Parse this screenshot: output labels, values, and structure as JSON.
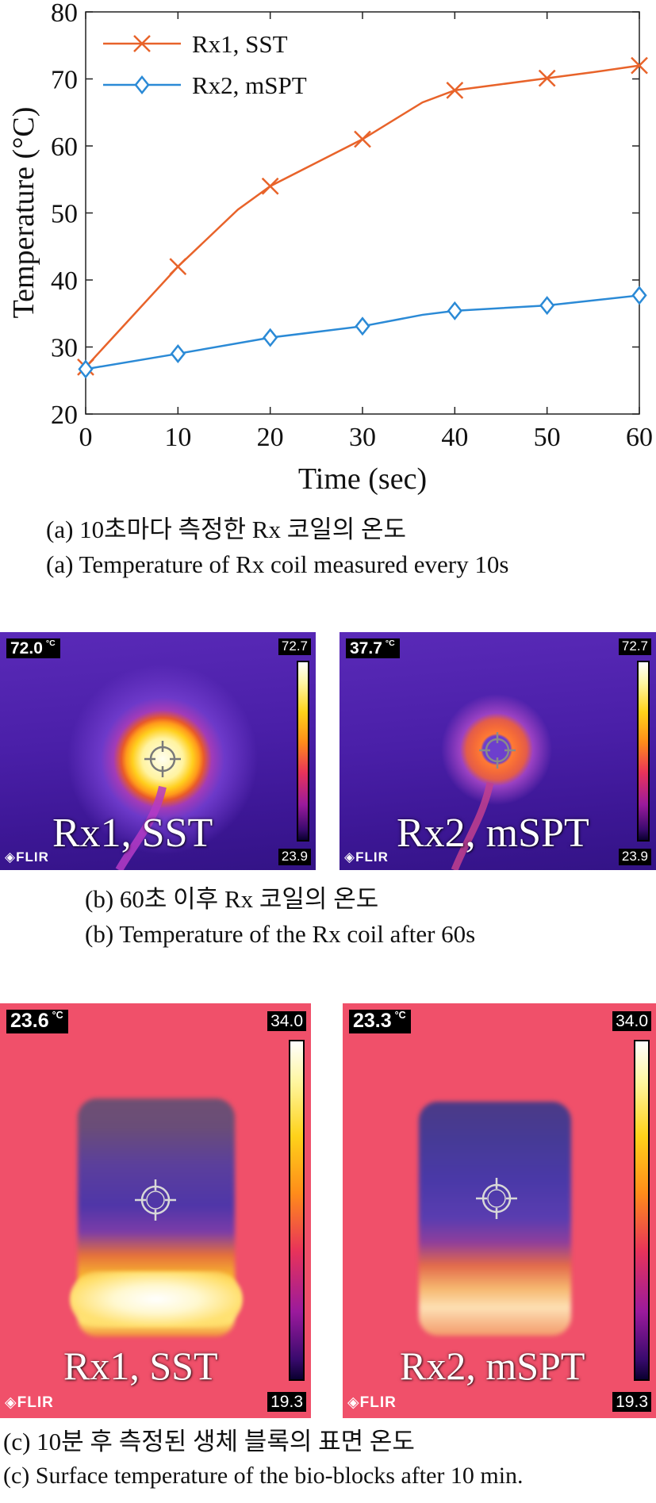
{
  "chart_data": {
    "type": "line",
    "x": [
      0,
      10,
      20,
      30,
      40,
      50,
      60
    ],
    "xlabel": "Time (sec)",
    "ylabel": "Temperature (°C)",
    "xlim": [
      0,
      60
    ],
    "ylim": [
      20,
      80
    ],
    "xticks": [
      "0",
      "10",
      "20",
      "30",
      "40",
      "50",
      "60"
    ],
    "yticks": [
      "20",
      "30",
      "40",
      "50",
      "60",
      "70",
      "80"
    ],
    "grid": false,
    "legend_position": "top-left",
    "series": [
      {
        "name": "Rx1, SST",
        "color": "#e8632a",
        "marker": "x",
        "values": [
          27.0,
          42.0,
          54.0,
          61.0,
          68.3,
          70.1,
          72.0
        ],
        "curve": [
          [
            0,
            27.0
          ],
          [
            5,
            34.5
          ],
          [
            10,
            42.0
          ],
          [
            16.5,
            50.5
          ],
          [
            20,
            54.0
          ],
          [
            25,
            57.5
          ],
          [
            30,
            61.0
          ],
          [
            36.5,
            66.5
          ],
          [
            40,
            68.3
          ],
          [
            45,
            69.2
          ],
          [
            50,
            70.1
          ],
          [
            55,
            71.0
          ],
          [
            60,
            72.0
          ]
        ]
      },
      {
        "name": "Rx2, mSPT",
        "color": "#2b8ad6",
        "marker": "diamond",
        "values": [
          26.7,
          29.0,
          31.4,
          33.1,
          35.4,
          36.2,
          37.7
        ],
        "curve": [
          [
            0,
            26.7
          ],
          [
            10,
            29.0
          ],
          [
            20,
            31.4
          ],
          [
            30,
            33.1
          ],
          [
            36.5,
            34.8
          ],
          [
            40,
            35.4
          ],
          [
            50,
            36.2
          ],
          [
            60,
            37.7
          ]
        ]
      }
    ]
  },
  "captions": {
    "a_ko": "(a) 10초마다 측정한 Rx 코일의 온도",
    "a_en": "(a) Temperature of Rx coil measured every 10s",
    "b_ko": "(b) 60초 이후 Rx 코일의 온도",
    "b_en": "(b) Temperature of the Rx coil after 60s",
    "c_ko": "(c) 10분 후 측정된 생체 블록의 표면 온도",
    "c_en": "(c) Surface temperature of the bio-blocks after 10 min."
  },
  "thermal_b": [
    {
      "readout": "72.0",
      "unit": "°C",
      "scale_max": "72.7",
      "scale_min": "23.9",
      "label": "Rx1, SST",
      "brand": "FLIR"
    },
    {
      "readout": "37.7",
      "unit": "°C",
      "scale_max": "72.7",
      "scale_min": "23.9",
      "label": "Rx2, mSPT",
      "brand": "FLIR"
    }
  ],
  "thermal_c": [
    {
      "readout": "23.6",
      "unit": "°C",
      "scale_max": "34.0",
      "scale_min": "19.3",
      "label": "Rx1, SST",
      "brand": "FLIR"
    },
    {
      "readout": "23.3",
      "unit": "°C",
      "scale_max": "34.0",
      "scale_min": "19.3",
      "label": "Rx2, mSPT",
      "brand": "FLIR"
    }
  ]
}
